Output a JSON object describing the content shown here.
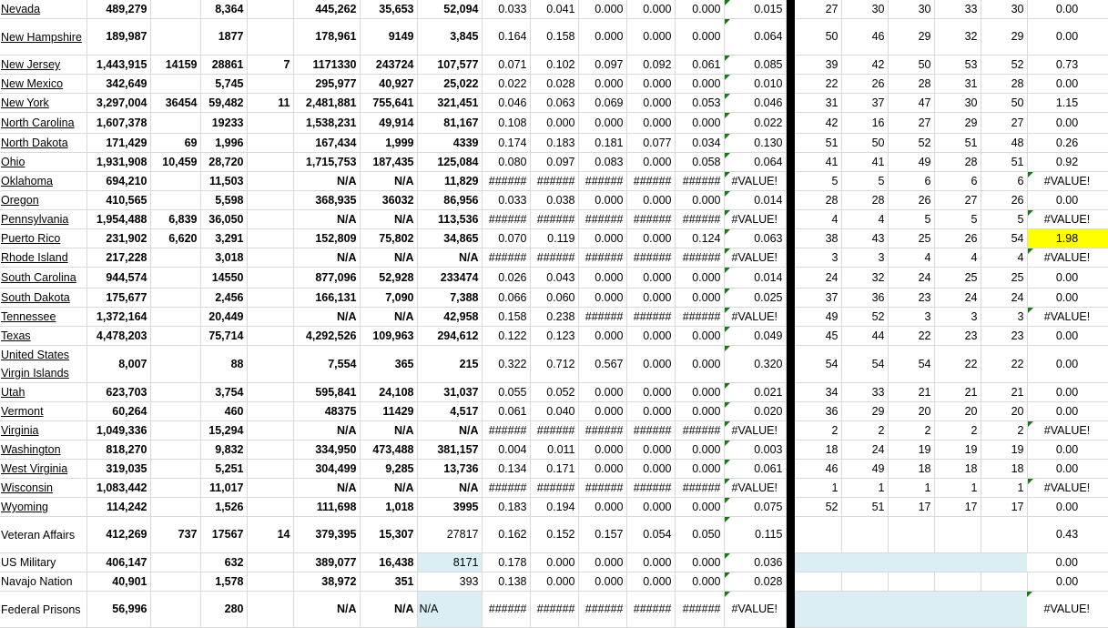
{
  "colors": {
    "gridline": "#d9d9d9",
    "highlight_yellow": "#ffff00",
    "selection_blue": "#daeef3",
    "error_indicator": "#107c10"
  },
  "rows": [
    {
      "name": "Nevada",
      "link": true,
      "v": [
        "489,279",
        "",
        "8,364",
        "",
        "445,262",
        "35,653",
        "52,094",
        "0.033",
        "0.041",
        "0.000",
        "0.000",
        "0.000",
        "0.015",
        "27",
        "30",
        "30",
        "33",
        "30",
        "0.00"
      ]
    },
    {
      "name": "New Hampshire",
      "link": true,
      "v": [
        "189,987",
        "",
        "1877",
        "",
        "178,961",
        "9149",
        "3,845",
        "0.164",
        "0.158",
        "0.000",
        "0.000",
        "0.000",
        "0.064",
        "50",
        "46",
        "29",
        "32",
        "29",
        "0.00"
      ]
    },
    {
      "name": "New Jersey",
      "link": true,
      "v": [
        "1,443,915",
        "14159",
        "28861",
        "7",
        "1171330",
        "243724",
        "107,577",
        "0.071",
        "0.102",
        "0.097",
        "0.092",
        "0.061",
        "0.085",
        "39",
        "42",
        "50",
        "53",
        "52",
        "0.73"
      ]
    },
    {
      "name": "New Mexico",
      "link": true,
      "v": [
        "342,649",
        "",
        "5,745",
        "",
        "295,977",
        "40,927",
        "25,022",
        "0.022",
        "0.028",
        "0.000",
        "0.000",
        "0.000",
        "0.010",
        "22",
        "26",
        "28",
        "31",
        "28",
        "0.00"
      ]
    },
    {
      "name": "New York",
      "link": true,
      "v": [
        "3,297,004",
        "36454",
        "59,482",
        "11",
        "2,481,881",
        "755,641",
        "321,451",
        "0.046",
        "0.063",
        "0.069",
        "0.000",
        "0.053",
        "0.046",
        "31",
        "37",
        "47",
        "30",
        "50",
        "1.15"
      ]
    },
    {
      "name": "North Carolina",
      "link": true,
      "v": [
        "1,607,378",
        "",
        "19233",
        "",
        "1,538,231",
        "49,914",
        "81,167",
        "0.108",
        "0.000",
        "0.000",
        "0.000",
        "0.000",
        "0.022",
        "42",
        "16",
        "27",
        "29",
        "27",
        "0.00"
      ]
    },
    {
      "name": "North Dakota",
      "link": true,
      "v": [
        "171,429",
        "69",
        "1,996",
        "",
        "167,434",
        "1,999",
        "4339",
        "0.174",
        "0.183",
        "0.181",
        "0.077",
        "0.034",
        "0.130",
        "51",
        "50",
        "52",
        "51",
        "48",
        "0.26"
      ]
    },
    {
      "name": "Ohio",
      "link": true,
      "v": [
        "1,931,908",
        "10,459",
        "28,720",
        "",
        "1,715,753",
        "187,435",
        "125,084",
        "0.080",
        "0.097",
        "0.083",
        "0.000",
        "0.058",
        "0.064",
        "41",
        "41",
        "49",
        "28",
        "51",
        "0.92"
      ]
    },
    {
      "name": "Oklahoma",
      "link": true,
      "v": [
        "694,210",
        "",
        "11,503",
        "",
        "N/A",
        "N/A",
        "11,829",
        "######",
        "######",
        "######",
        "######",
        "######",
        "#VALUE!",
        "5",
        "5",
        "6",
        "6",
        "6",
        "#VALUE!"
      ]
    },
    {
      "name": "Oregon",
      "link": true,
      "v": [
        "410,565",
        "",
        "5,598",
        "",
        "368,935",
        "36032",
        "86,956",
        "0.033",
        "0.038",
        "0.000",
        "0.000",
        "0.000",
        "0.014",
        "28",
        "28",
        "26",
        "27",
        "26",
        "0.00"
      ]
    },
    {
      "name": "Pennsylvania",
      "link": true,
      "v": [
        "1,954,488",
        "6,839",
        "36,050",
        "",
        "N/A",
        "N/A",
        "113,536",
        "######",
        "######",
        "######",
        "######",
        "######",
        "#VALUE!",
        "4",
        "4",
        "5",
        "5",
        "5",
        "#VALUE!"
      ]
    },
    {
      "name": "Puerto Rico",
      "link": true,
      "v": [
        "231,902",
        "6,620",
        "3,291",
        "",
        "152,809",
        "75,802",
        "34,865",
        "0.070",
        "0.119",
        "0.000",
        "0.000",
        "0.124",
        "0.063",
        "38",
        "43",
        "25",
        "26",
        "54",
        "1.98"
      ],
      "fill": {
        "18": "#ffff00"
      }
    },
    {
      "name": "Rhode Island",
      "link": true,
      "v": [
        "217,228",
        "",
        "3,018",
        "",
        "N/A",
        "N/A",
        "N/A",
        "######",
        "######",
        "######",
        "######",
        "######",
        "#VALUE!",
        "3",
        "3",
        "4",
        "4",
        "4",
        "#VALUE!"
      ]
    },
    {
      "name": "South Carolina",
      "link": true,
      "v": [
        "944,574",
        "",
        "14550",
        "",
        "877,096",
        "52,928",
        "233474",
        "0.026",
        "0.043",
        "0.000",
        "0.000",
        "0.000",
        "0.014",
        "24",
        "32",
        "24",
        "25",
        "25",
        "0.00"
      ]
    },
    {
      "name": "South Dakota",
      "link": true,
      "v": [
        "175,677",
        "",
        "2,456",
        "",
        "166,131",
        "7,090",
        "7,388",
        "0.066",
        "0.060",
        "0.000",
        "0.000",
        "0.000",
        "0.025",
        "37",
        "36",
        "23",
        "24",
        "24",
        "0.00"
      ]
    },
    {
      "name": "Tennessee",
      "link": true,
      "v": [
        "1,372,164",
        "",
        "20,449",
        "",
        "N/A",
        "N/A",
        "42,958",
        "0.158",
        "0.238",
        "######",
        "######",
        "######",
        "#VALUE!",
        "49",
        "52",
        "3",
        "3",
        "3",
        "#VALUE!"
      ]
    },
    {
      "name": "Texas",
      "link": true,
      "v": [
        "4,478,203",
        "",
        "75,714",
        "",
        "4,292,526",
        "109,963",
        "294,612",
        "0.122",
        "0.123",
        "0.000",
        "0.000",
        "0.000",
        "0.049",
        "45",
        "44",
        "22",
        "23",
        "23",
        "0.00"
      ]
    },
    {
      "name": "United States Virgin Islands",
      "link": true,
      "v": [
        "8,007",
        "",
        "88",
        "",
        "7,554",
        "365",
        "215",
        "0.322",
        "0.712",
        "0.567",
        "0.000",
        "0.000",
        "0.320",
        "54",
        "54",
        "54",
        "22",
        "22",
        "0.00"
      ]
    },
    {
      "name": "Utah",
      "link": true,
      "v": [
        "623,703",
        "",
        "3,754",
        "",
        "595,841",
        "24,108",
        "31,037",
        "0.055",
        "0.052",
        "0.000",
        "0.000",
        "0.000",
        "0.021",
        "34",
        "33",
        "21",
        "21",
        "21",
        "0.00"
      ]
    },
    {
      "name": "Vermont",
      "link": true,
      "v": [
        "60,264",
        "",
        "460",
        "",
        "48375",
        "11429",
        "4,517",
        "0.061",
        "0.040",
        "0.000",
        "0.000",
        "0.000",
        "0.020",
        "36",
        "29",
        "20",
        "20",
        "20",
        "0.00"
      ]
    },
    {
      "name": "Virginia",
      "link": true,
      "v": [
        "1,049,336",
        "",
        "15,294",
        "",
        "N/A",
        "N/A",
        "N/A",
        "######",
        "######",
        "######",
        "######",
        "######",
        "#VALUE!",
        "2",
        "2",
        "2",
        "2",
        "2",
        "#VALUE!"
      ]
    },
    {
      "name": "Washington",
      "link": true,
      "v": [
        "818,270",
        "",
        "9,832",
        "",
        "334,950",
        "473,488",
        "381,157",
        "0.004",
        "0.011",
        "0.000",
        "0.000",
        "0.000",
        "0.003",
        "18",
        "24",
        "19",
        "19",
        "19",
        "0.00"
      ]
    },
    {
      "name": "West Virginia",
      "link": true,
      "v": [
        "319,035",
        "",
        "5,251",
        "",
        "304,499",
        "9,285",
        "13,736",
        "0.134",
        "0.171",
        "0.000",
        "0.000",
        "0.000",
        "0.061",
        "46",
        "49",
        "18",
        "18",
        "18",
        "0.00"
      ]
    },
    {
      "name": "Wisconsin",
      "link": true,
      "v": [
        "1,083,442",
        "",
        "11,017",
        "",
        "N/A",
        "N/A",
        "N/A",
        "######",
        "######",
        "######",
        "######",
        "######",
        "#VALUE!",
        "1",
        "1",
        "1",
        "1",
        "1",
        "#VALUE!"
      ]
    },
    {
      "name": "Wyoming",
      "link": true,
      "v": [
        "114,242",
        "",
        "1,526",
        "",
        "111,698",
        "1,018",
        "3995",
        "0.183",
        "0.194",
        "0.000",
        "0.000",
        "0.000",
        "0.075",
        "52",
        "51",
        "17",
        "17",
        "17",
        "0.00"
      ]
    },
    {
      "name": "Veteran Affairs",
      "link": false,
      "v": [
        "412,269",
        "737",
        "17567",
        "14",
        "379,395",
        "15,307",
        "27817",
        "0.162",
        "0.152",
        "0.157",
        "0.054",
        "0.050",
        "0.115",
        "",
        "",
        "",
        "",
        "",
        "0.43"
      ]
    },
    {
      "name": "US Military",
      "link": false,
      "v": [
        "406,147",
        "",
        "632",
        "",
        "389,077",
        "16,438",
        "8171",
        "0.178",
        "0.000",
        "0.000",
        "0.000",
        "0.000",
        "0.036",
        "",
        "",
        "",
        "",
        "",
        "0.00"
      ],
      "fill": {
        "6": "#daeef3",
        "13": "#daeef3",
        "14": "#daeef3",
        "15": "#daeef3",
        "16": "#daeef3",
        "17": "#daeef3"
      }
    },
    {
      "name": "Navajo Nation",
      "link": false,
      "v": [
        "40,901",
        "",
        "1,578",
        "",
        "38,972",
        "351",
        "393",
        "0.138",
        "0.000",
        "0.000",
        "0.000",
        "0.000",
        "0.028",
        "",
        "",
        "",
        "",
        "",
        "0.00"
      ]
    },
    {
      "name": "Federal Prisons",
      "link": false,
      "v": [
        "56,996",
        "",
        "280",
        "",
        "N/A",
        "N/A",
        "N/A",
        "######",
        "######",
        "######",
        "######",
        "######",
        "#VALUE!",
        "",
        "",
        "",
        "",
        "",
        "#VALUE!"
      ],
      "fill": {
        "6": "#daeef3",
        "13": "#daeef3",
        "14": "#daeef3",
        "15": "#daeef3",
        "16": "#daeef3",
        "17": "#daeef3"
      }
    }
  ]
}
